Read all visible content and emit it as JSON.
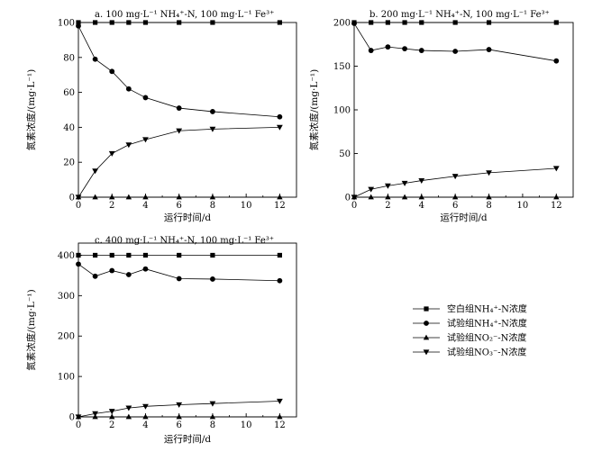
{
  "chart_data": [
    {
      "type": "line",
      "title": "a. 100 mg·L⁻¹ NH₄⁺-N, 100 mg·L⁻¹ Fe³⁺",
      "xlabel": "运行时间/d",
      "ylabel": "氮素浓度/(mg·L⁻¹)",
      "xlim": [
        0,
        13
      ],
      "ylim": [
        0,
        100
      ],
      "xticks": [
        "0",
        "2",
        "4",
        "6",
        "8",
        "10",
        "12"
      ],
      "yticks": [
        "0",
        "20",
        "40",
        "60",
        "80",
        "100"
      ],
      "series": [
        {
          "name": "空白组NH₄⁺-N浓度",
          "marker": "square",
          "x": [
            0,
            1,
            2,
            3,
            4,
            6,
            8,
            12
          ],
          "y": [
            100,
            100,
            100,
            100,
            100,
            100,
            100,
            100
          ]
        },
        {
          "name": "试验组NH₄⁺-N浓度",
          "marker": "circle",
          "x": [
            0,
            1,
            2,
            3,
            4,
            6,
            8,
            12
          ],
          "y": [
            98,
            79,
            72,
            62,
            57,
            51,
            49,
            46
          ]
        },
        {
          "name": "试验组NO₂⁻-N浓度",
          "marker": "triangle-up",
          "x": [
            0,
            1,
            2,
            3,
            4,
            6,
            8,
            12
          ],
          "y": [
            0,
            0,
            0,
            0,
            0,
            0,
            0,
            0
          ]
        },
        {
          "name": "试验组NO₃⁻-N浓度",
          "marker": "triangle-down",
          "x": [
            0,
            1,
            2,
            3,
            4,
            6,
            8,
            12
          ],
          "y": [
            0,
            15,
            25,
            30,
            33,
            38,
            39,
            40
          ]
        }
      ]
    },
    {
      "type": "line",
      "title": "b. 200 mg·L⁻¹ NH₄⁺-N, 100 mg·L⁻¹ Fe³⁺",
      "xlabel": "运行时间/d",
      "ylabel": "氮素浓度/(mg·L⁻¹)",
      "xlim": [
        0,
        13
      ],
      "ylim": [
        0,
        200
      ],
      "xticks": [
        "0",
        "2",
        "4",
        "6",
        "8",
        "10",
        "12"
      ],
      "yticks": [
        "0",
        "50",
        "100",
        "150",
        "200"
      ],
      "series": [
        {
          "name": "空白组NH₄⁺-N浓度",
          "marker": "square",
          "x": [
            0,
            1,
            2,
            3,
            4,
            6,
            8,
            12
          ],
          "y": [
            200,
            200,
            200,
            200,
            200,
            200,
            200,
            200
          ]
        },
        {
          "name": "试验组NH₄⁺-N浓度",
          "marker": "circle",
          "x": [
            0,
            1,
            2,
            3,
            4,
            6,
            8,
            12
          ],
          "y": [
            199,
            168,
            172,
            170,
            168,
            167,
            169,
            156
          ]
        },
        {
          "name": "试验组NO₂⁻-N浓度",
          "marker": "triangle-up",
          "x": [
            0,
            1,
            2,
            3,
            4,
            6,
            8,
            12
          ],
          "y": [
            0,
            0,
            0,
            0,
            0,
            0,
            0,
            0
          ]
        },
        {
          "name": "试验组NO₃⁻-N浓度",
          "marker": "triangle-down",
          "x": [
            0,
            1,
            2,
            3,
            4,
            6,
            8,
            12
          ],
          "y": [
            0,
            9,
            13,
            16,
            19,
            24,
            28,
            33
          ]
        }
      ]
    },
    {
      "type": "line",
      "title": "c. 400 mg·L⁻¹ NH₄⁺-N, 100 mg·L⁻¹ Fe³⁺",
      "xlabel": "运行时间/d",
      "ylabel": "氮素浓度/(mg·L⁻¹)",
      "xlim": [
        0,
        13
      ],
      "ylim": [
        0,
        430
      ],
      "xticks": [
        "0",
        "2",
        "4",
        "6",
        "8",
        "10",
        "12"
      ],
      "yticks": [
        "0",
        "100",
        "200",
        "300",
        "400"
      ],
      "series": [
        {
          "name": "空白组NH₄⁺-N浓度",
          "marker": "square",
          "x": [
            0,
            1,
            2,
            3,
            4,
            6,
            8,
            12
          ],
          "y": [
            400,
            400,
            400,
            400,
            400,
            400,
            400,
            400
          ]
        },
        {
          "name": "试验组NH₄⁺-N浓度",
          "marker": "circle",
          "x": [
            0,
            1,
            2,
            3,
            4,
            6,
            8,
            12
          ],
          "y": [
            378,
            348,
            362,
            352,
            366,
            342,
            341,
            337
          ]
        },
        {
          "name": "试验组NO₂⁻-N浓度",
          "marker": "triangle-up",
          "x": [
            0,
            1,
            2,
            3,
            4,
            6,
            8,
            12
          ],
          "y": [
            0,
            0,
            0,
            0,
            0,
            0,
            0,
            0
          ]
        },
        {
          "name": "试验组NO₃⁻-N浓度",
          "marker": "triangle-down",
          "x": [
            0,
            1,
            2,
            3,
            4,
            6,
            8,
            12
          ],
          "y": [
            0,
            8,
            14,
            22,
            26,
            30,
            33,
            39
          ]
        }
      ]
    }
  ],
  "legend": {
    "items": [
      {
        "label": "空白组NH₄⁺-N浓度",
        "marker": "square"
      },
      {
        "label": "试验组NH₄⁺-N浓度",
        "marker": "circle"
      },
      {
        "label": "试验组NO₂⁻-N浓度",
        "marker": "triangle-up"
      },
      {
        "label": "试验组NO₃⁻-N浓度",
        "marker": "triangle-down"
      }
    ]
  }
}
